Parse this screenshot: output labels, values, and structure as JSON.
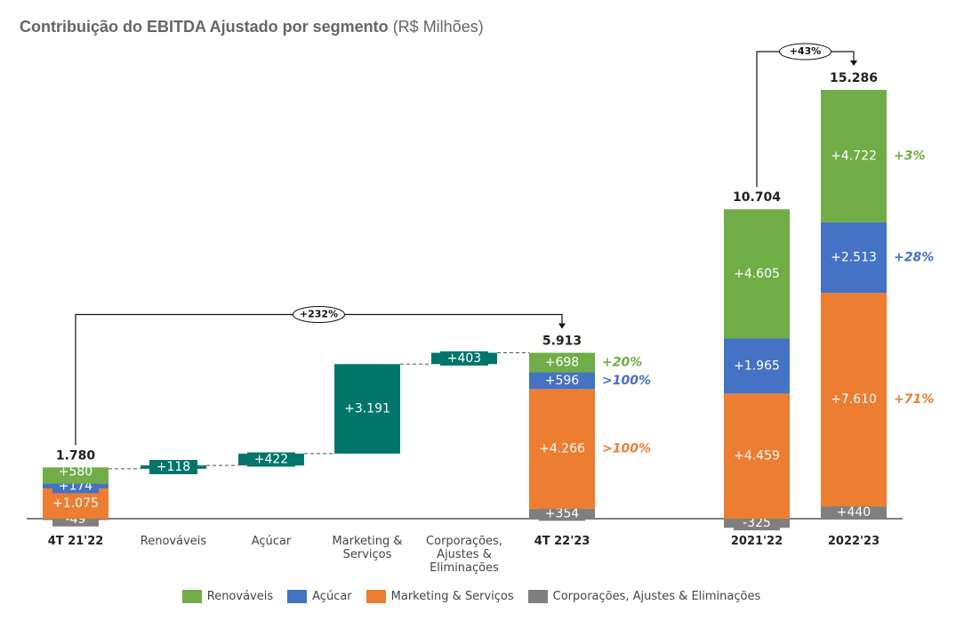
{
  "chart_data": {
    "type": "stacked_waterfall",
    "title": "Contribuição do EBITDA Ajustado por segmento",
    "subtitle": "(R$ Milhões)",
    "categories": [
      "4T 21'22",
      "Renováveis",
      "Açúcar",
      "Marketing & Serviços",
      "Corporações, Ajustes & Eliminações",
      "4T 22'23",
      "2021'22",
      "2022'23"
    ],
    "series": [
      {
        "name": "Renováveis",
        "color": "#70ad47",
        "values": [
          580,
          null,
          null,
          null,
          null,
          698,
          4605,
          4722
        ],
        "value_labels": [
          "+580",
          null,
          null,
          null,
          null,
          "+698",
          "+4.605",
          "+4.722"
        ],
        "growth_labels": [
          "+20%",
          "+3%"
        ]
      },
      {
        "name": "Açúcar",
        "color": "#4472c4",
        "values": [
          174,
          null,
          null,
          null,
          null,
          596,
          1965,
          2513
        ],
        "value_labels": [
          "+174",
          null,
          null,
          null,
          null,
          "+596",
          "+1.965",
          "+2.513"
        ],
        "growth_labels": [
          ">100%",
          "+28%"
        ]
      },
      {
        "name": "Marketing & Serviços",
        "color": "#ed7d31",
        "values": [
          1075,
          null,
          null,
          null,
          null,
          4266,
          4459,
          7610
        ],
        "value_labels": [
          "+1.075",
          null,
          null,
          null,
          null,
          "+4.266",
          "+4.459",
          "+7.610"
        ],
        "growth_labels": [
          ">100%",
          "+71%"
        ]
      },
      {
        "name": "Corporações, Ajustes & Eliminações",
        "color": "#7f7f7f",
        "values": [
          -49,
          null,
          null,
          null,
          null,
          354,
          -325,
          440
        ],
        "value_labels": [
          "-49",
          null,
          null,
          null,
          null,
          "+354",
          "-325",
          "+440"
        ]
      }
    ],
    "steps": {
      "color": "#00756a",
      "values": [
        null,
        118,
        422,
        3191,
        403,
        null,
        null,
        null
      ],
      "value_labels": [
        null,
        "+118",
        "+422",
        "+3.191",
        "+403",
        null,
        null,
        null
      ]
    },
    "totals": {
      "values": [
        1780,
        null,
        null,
        null,
        null,
        5913,
        10704,
        15286
      ],
      "value_labels": [
        "1.780",
        null,
        null,
        null,
        null,
        "5.913",
        "10.704",
        "15.286"
      ]
    },
    "annotations": [
      "+232%",
      "+43%"
    ]
  }
}
